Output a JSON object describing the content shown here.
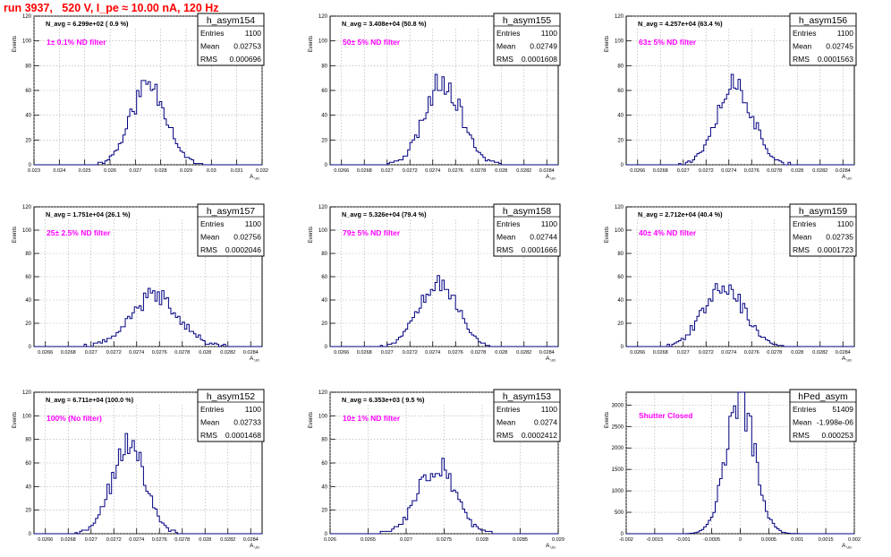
{
  "page_title": "run 3937,   520 V, I_pe ≈ 10.00 nA, 120 Hz",
  "colors": {
    "histogram": "#000080",
    "filter_label": "#ff00ff",
    "page_title": "#ff0000",
    "frame": "#000000"
  },
  "common": {
    "y_axis_label": "Events",
    "x_axis_label": "A",
    "x_axis_subscript": "UD",
    "stats_labels": {
      "entries": "Entries",
      "mean": "Mean",
      "rms": "RMS"
    }
  },
  "chart_data": [
    {
      "type": "histogram",
      "name": "h_asym154",
      "navg": "N_avg = 6.299e+02 ( 0.9 %)",
      "filter": "1± 0.1% ND filter",
      "entries": "1100",
      "mean": "0.02753",
      "rms": "0.000696",
      "mean_value": 0.02753,
      "rms_value": 0.000696,
      "peak": 66,
      "xlim": [
        0.023,
        0.032
      ],
      "ylim": [
        0,
        120
      ],
      "xticks": [
        "0.023",
        "0.024",
        "0.025",
        "0.026",
        "0.027",
        "0.028",
        "0.029",
        "0.03",
        "0.031",
        "0.032"
      ],
      "yticks": [
        "0",
        "20",
        "40",
        "60",
        "80",
        "100",
        "120"
      ],
      "seed": 11
    },
    {
      "type": "histogram",
      "name": "h_asym155",
      "navg": "N_avg = 3.408e+04 (50.8 %)",
      "filter": "50± 5% ND filter",
      "entries": "1100",
      "mean": "0.02749",
      "rms": "0.0001608",
      "mean_value": 0.02749,
      "rms_value": 0.0001608,
      "peak": 68,
      "xlim": [
        0.0265,
        0.0285
      ],
      "ylim": [
        0,
        120
      ],
      "xticks": [
        "0.0266",
        "0.0268",
        "0.027",
        "0.0272",
        "0.0274",
        "0.0276",
        "0.0278",
        "0.028",
        "0.0282",
        "0.0284"
      ],
      "yticks": [
        "0",
        "20",
        "40",
        "60",
        "80",
        "100",
        "120"
      ],
      "seed": 23
    },
    {
      "type": "histogram",
      "name": "h_asym156",
      "navg": "N_avg = 4.257e+04 (63.4 %)",
      "filter": "63± 5% ND filter",
      "entries": "1100",
      "mean": "0.02745",
      "rms": "0.0001563",
      "mean_value": 0.02745,
      "rms_value": 0.0001563,
      "peak": 66,
      "xlim": [
        0.0265,
        0.0285
      ],
      "ylim": [
        0,
        120
      ],
      "xticks": [
        "0.0266",
        "0.0268",
        "0.027",
        "0.0272",
        "0.0274",
        "0.0276",
        "0.0278",
        "0.028",
        "0.0282",
        "0.0284"
      ],
      "yticks": [
        "0",
        "20",
        "40",
        "60",
        "80",
        "100",
        "120"
      ],
      "seed": 37
    },
    {
      "type": "histogram",
      "name": "h_asym157",
      "navg": "N_avg = 1.751e+04 (26.1 %)",
      "filter": "25± 2.5% ND filter",
      "entries": "1100",
      "mean": "0.02756",
      "rms": "0.0002046",
      "mean_value": 0.02756,
      "rms_value": 0.0002046,
      "peak": 44,
      "xlim": [
        0.0265,
        0.0285
      ],
      "ylim": [
        0,
        120
      ],
      "xticks": [
        "0.0266",
        "0.0268",
        "0.027",
        "0.0272",
        "0.0274",
        "0.0276",
        "0.0278",
        "0.028",
        "0.0282",
        "0.0284"
      ],
      "yticks": [
        "0",
        "20",
        "40",
        "60",
        "80",
        "100",
        "120"
      ],
      "seed": 41
    },
    {
      "type": "histogram",
      "name": "h_asym158",
      "navg": "N_avg = 5.326e+04 (79.4 %)",
      "filter": "79± 5% ND filter",
      "entries": "1100",
      "mean": "0.02744",
      "rms": "0.0001666",
      "mean_value": 0.02744,
      "rms_value": 0.0001666,
      "peak": 58,
      "xlim": [
        0.0265,
        0.0285
      ],
      "ylim": [
        0,
        120
      ],
      "xticks": [
        "0.0266",
        "0.0268",
        "0.027",
        "0.0272",
        "0.0274",
        "0.0276",
        "0.0278",
        "0.028",
        "0.0282",
        "0.0284"
      ],
      "yticks": [
        "0",
        "20",
        "40",
        "60",
        "80",
        "100",
        "120"
      ],
      "seed": 53
    },
    {
      "type": "histogram",
      "name": "h_asym159",
      "navg": "N_avg = 2.712e+04 (40.4 %)",
      "filter": "40± 4% ND filter",
      "entries": "1100",
      "mean": "0.02735",
      "rms": "0.0001723",
      "mean_value": 0.02735,
      "rms_value": 0.0001723,
      "peak": 55,
      "xlim": [
        0.0265,
        0.0285
      ],
      "ylim": [
        0,
        120
      ],
      "xticks": [
        "0.0266",
        "0.0268",
        "0.027",
        "0.0272",
        "0.0274",
        "0.0276",
        "0.0278",
        "0.028",
        "0.0282",
        "0.0284"
      ],
      "yticks": [
        "0",
        "20",
        "40",
        "60",
        "80",
        "100",
        "120"
      ],
      "seed": 67
    },
    {
      "type": "histogram",
      "name": "h_asym152",
      "navg": "N_avg = 6.711e+04 (100.0 %)",
      "filter": "100% (No filter)",
      "entries": "1100",
      "mean": "0.02733",
      "rms": "0.0001468",
      "mean_value": 0.02733,
      "rms_value": 0.0001468,
      "peak": 75,
      "xlim": [
        0.0265,
        0.0285
      ],
      "ylim": [
        0,
        120
      ],
      "xticks": [
        "0.0266",
        "0.0268",
        "0.027",
        "0.0272",
        "0.0274",
        "0.0276",
        "0.0278",
        "0.028",
        "0.0282",
        "0.0284"
      ],
      "yticks": [
        "0",
        "20",
        "40",
        "60",
        "80",
        "100",
        "120"
      ],
      "seed": 71
    },
    {
      "type": "histogram",
      "name": "h_asym153",
      "navg": "N_avg = 6.353e+03 ( 9.5 %)",
      "filter": "10± 1% ND filter",
      "entries": "1100",
      "mean": "0.0274",
      "rms": "0.0002412",
      "mean_value": 0.0274,
      "rms_value": 0.0002412,
      "peak": 60,
      "xlim": [
        0.026,
        0.029
      ],
      "ylim": [
        0,
        120
      ],
      "xticks": [
        "0.026",
        "0.0265",
        "0.027",
        "0.0275",
        "0.028",
        "0.0285",
        "0.029"
      ],
      "yticks": [
        "0",
        "20",
        "40",
        "60",
        "80",
        "100",
        "120"
      ],
      "seed": 83
    },
    {
      "type": "histogram",
      "name": "hPed_asym",
      "navg": "",
      "filter": "Shutter Closed",
      "entries": "51409",
      "mean": "-1.998e-06",
      "rms": "0.000253",
      "mean_value": -2e-06,
      "rms_value": 0.000253,
      "peak": 3100,
      "xlim": [
        -0.002,
        0.002
      ],
      "ylim": [
        0,
        3300
      ],
      "xticks": [
        "-0.002",
        "-0.0015",
        "-0.001",
        "-0.0005",
        "0",
        "0.0005",
        "0.001",
        "0.0015",
        "0.002"
      ],
      "yticks": [
        "0",
        "500",
        "1000",
        "1500",
        "2000",
        "2500",
        "3000"
      ],
      "seed": 97
    }
  ]
}
